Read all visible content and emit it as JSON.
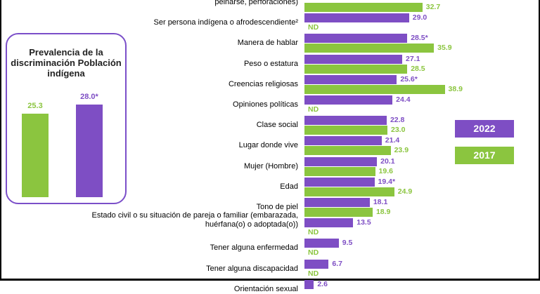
{
  "colors": {
    "series_2022": "#7e4ec4",
    "series_2017": "#8bc53f",
    "border": "#7b4fc9"
  },
  "legend": {
    "y2022": "2022",
    "y2017": "2017"
  },
  "inset": {
    "title": "Prevalencia de la discriminación Población indígena",
    "values": [
      "25.3",
      "28.0*"
    ]
  },
  "chart_data": {
    "type": "bar",
    "orientation": "horizontal",
    "series": [
      {
        "name": "2022",
        "values": [
          null,
          29.0,
          28.5,
          27.1,
          25.6,
          24.4,
          22.8,
          21.4,
          20.1,
          19.4,
          18.1,
          13.5,
          9.5,
          6.7,
          2.6
        ]
      },
      {
        "name": "2017",
        "values": [
          32.7,
          null,
          35.9,
          28.5,
          38.9,
          null,
          23.0,
          23.9,
          19.6,
          24.9,
          18.9,
          null,
          null,
          null,
          null
        ]
      }
    ],
    "categories": [
      "peinarse, perforaciones)",
      "Ser persona indígena o afrodescendiente²",
      "Manera de hablar",
      "Peso o estatura",
      "Creencias religiosas",
      "Opiniones políticas",
      "Clase social",
      "Lugar donde vive",
      "Mujer (Hombre)",
      "Edad",
      "Tono de piel",
      "Estado civil o su situación de pareja o familiar (embarazada, huérfana(o) o adoptada(o))",
      "Tener alguna enfermedad",
      "Tener alguna discapacidad",
      "Orientación sexual"
    ],
    "labels_2022": [
      "",
      "29.0",
      "28.5*",
      "27.1",
      "25.6*",
      "24.4",
      "22.8",
      "21.4",
      "20.1",
      "19.4*",
      "18.1",
      "13.5",
      "9.5",
      "6.7",
      "2.6"
    ],
    "labels_2017": [
      "32.7",
      "ND",
      "35.9",
      "28.5",
      "38.9",
      "ND",
      "23.0",
      "23.9",
      "19.6",
      "24.9",
      "18.9",
      "ND",
      "ND",
      "ND",
      ""
    ]
  }
}
